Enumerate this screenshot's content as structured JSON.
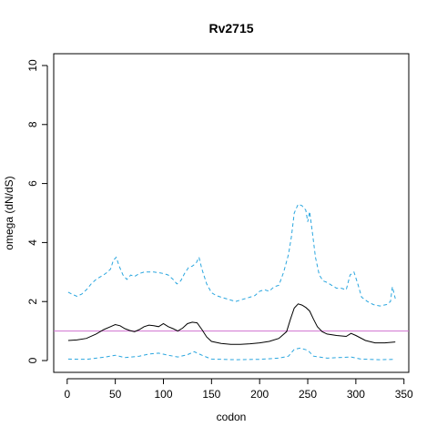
{
  "chart_data": {
    "type": "line",
    "title": "Rv2715",
    "xlabel": "codon",
    "ylabel": "omega (dN/dS)",
    "xlim": [
      -14,
      355
    ],
    "ylim": [
      -0.4,
      10.4
    ],
    "x_ticks": [
      0,
      50,
      100,
      150,
      200,
      250,
      300,
      350
    ],
    "y_ticks": [
      0,
      2,
      4,
      6,
      8,
      10
    ],
    "reference_line": {
      "y": 1,
      "color": "#d070d0"
    },
    "grid": false,
    "legend": "none",
    "series": [
      {
        "role": "upper",
        "color": "#2aa6df",
        "style": "dashed",
        "points": [
          [
            1,
            2.32
          ],
          [
            5,
            2.25
          ],
          [
            10,
            2.18
          ],
          [
            15,
            2.25
          ],
          [
            20,
            2.4
          ],
          [
            25,
            2.6
          ],
          [
            30,
            2.75
          ],
          [
            35,
            2.85
          ],
          [
            40,
            2.95
          ],
          [
            45,
            3.1
          ],
          [
            48,
            3.4
          ],
          [
            51,
            3.5
          ],
          [
            54,
            3.2
          ],
          [
            58,
            2.9
          ],
          [
            62,
            2.75
          ],
          [
            66,
            2.9
          ],
          [
            70,
            2.85
          ],
          [
            75,
            2.95
          ],
          [
            80,
            3.0
          ],
          [
            85,
            3.0
          ],
          [
            90,
            3.0
          ],
          [
            95,
            2.98
          ],
          [
            100,
            2.95
          ],
          [
            105,
            2.9
          ],
          [
            110,
            2.75
          ],
          [
            114,
            2.6
          ],
          [
            118,
            2.7
          ],
          [
            122,
            2.95
          ],
          [
            126,
            3.15
          ],
          [
            130,
            3.2
          ],
          [
            134,
            3.3
          ],
          [
            137,
            3.5
          ],
          [
            140,
            3.1
          ],
          [
            145,
            2.6
          ],
          [
            150,
            2.3
          ],
          [
            155,
            2.2
          ],
          [
            160,
            2.15
          ],
          [
            165,
            2.1
          ],
          [
            170,
            2.05
          ],
          [
            175,
            2.0
          ],
          [
            180,
            2.05
          ],
          [
            185,
            2.1
          ],
          [
            190,
            2.15
          ],
          [
            195,
            2.2
          ],
          [
            200,
            2.35
          ],
          [
            205,
            2.4
          ],
          [
            210,
            2.35
          ],
          [
            215,
            2.5
          ],
          [
            220,
            2.55
          ],
          [
            225,
            3.0
          ],
          [
            230,
            3.6
          ],
          [
            233,
            4.2
          ],
          [
            236,
            5.0
          ],
          [
            240,
            5.3
          ],
          [
            244,
            5.25
          ],
          [
            248,
            5.1
          ],
          [
            250,
            4.7
          ],
          [
            252,
            5.05
          ],
          [
            255,
            4.3
          ],
          [
            258,
            3.5
          ],
          [
            262,
            2.9
          ],
          [
            266,
            2.7
          ],
          [
            270,
            2.65
          ],
          [
            275,
            2.55
          ],
          [
            280,
            2.45
          ],
          [
            285,
            2.45
          ],
          [
            290,
            2.4
          ],
          [
            294,
            2.9
          ],
          [
            298,
            3.0
          ],
          [
            302,
            2.6
          ],
          [
            306,
            2.15
          ],
          [
            312,
            2.0
          ],
          [
            318,
            1.9
          ],
          [
            325,
            1.85
          ],
          [
            332,
            1.9
          ],
          [
            336,
            2.0
          ],
          [
            338,
            2.5
          ],
          [
            341,
            2.1
          ]
        ]
      },
      {
        "role": "estimate",
        "color": "#000000",
        "style": "solid",
        "points": [
          [
            1,
            0.68
          ],
          [
            10,
            0.7
          ],
          [
            20,
            0.75
          ],
          [
            30,
            0.9
          ],
          [
            38,
            1.05
          ],
          [
            45,
            1.15
          ],
          [
            50,
            1.22
          ],
          [
            55,
            1.18
          ],
          [
            60,
            1.08
          ],
          [
            65,
            1.02
          ],
          [
            70,
            0.98
          ],
          [
            75,
            1.05
          ],
          [
            80,
            1.15
          ],
          [
            85,
            1.2
          ],
          [
            90,
            1.18
          ],
          [
            95,
            1.15
          ],
          [
            100,
            1.25
          ],
          [
            105,
            1.15
          ],
          [
            110,
            1.08
          ],
          [
            115,
            1.0
          ],
          [
            120,
            1.1
          ],
          [
            125,
            1.25
          ],
          [
            130,
            1.3
          ],
          [
            135,
            1.28
          ],
          [
            140,
            1.05
          ],
          [
            145,
            0.8
          ],
          [
            150,
            0.65
          ],
          [
            160,
            0.58
          ],
          [
            170,
            0.55
          ],
          [
            180,
            0.55
          ],
          [
            190,
            0.57
          ],
          [
            200,
            0.6
          ],
          [
            210,
            0.65
          ],
          [
            220,
            0.75
          ],
          [
            228,
            0.98
          ],
          [
            232,
            1.4
          ],
          [
            236,
            1.78
          ],
          [
            240,
            1.92
          ],
          [
            244,
            1.88
          ],
          [
            248,
            1.8
          ],
          [
            252,
            1.68
          ],
          [
            256,
            1.4
          ],
          [
            260,
            1.15
          ],
          [
            265,
            0.98
          ],
          [
            270,
            0.9
          ],
          [
            280,
            0.85
          ],
          [
            290,
            0.82
          ],
          [
            295,
            0.92
          ],
          [
            300,
            0.85
          ],
          [
            310,
            0.68
          ],
          [
            320,
            0.6
          ],
          [
            330,
            0.6
          ],
          [
            341,
            0.63
          ]
        ]
      },
      {
        "role": "lower",
        "color": "#2aa6df",
        "style": "dashed",
        "points": [
          [
            1,
            0.05
          ],
          [
            20,
            0.04
          ],
          [
            40,
            0.12
          ],
          [
            50,
            0.18
          ],
          [
            60,
            0.1
          ],
          [
            75,
            0.15
          ],
          [
            85,
            0.22
          ],
          [
            95,
            0.25
          ],
          [
            105,
            0.18
          ],
          [
            115,
            0.12
          ],
          [
            125,
            0.2
          ],
          [
            132,
            0.3
          ],
          [
            140,
            0.18
          ],
          [
            150,
            0.05
          ],
          [
            175,
            0.03
          ],
          [
            200,
            0.04
          ],
          [
            220,
            0.08
          ],
          [
            230,
            0.15
          ],
          [
            236,
            0.38
          ],
          [
            242,
            0.42
          ],
          [
            250,
            0.35
          ],
          [
            256,
            0.15
          ],
          [
            270,
            0.08
          ],
          [
            295,
            0.12
          ],
          [
            305,
            0.05
          ],
          [
            325,
            0.03
          ],
          [
            341,
            0.04
          ]
        ]
      }
    ]
  }
}
